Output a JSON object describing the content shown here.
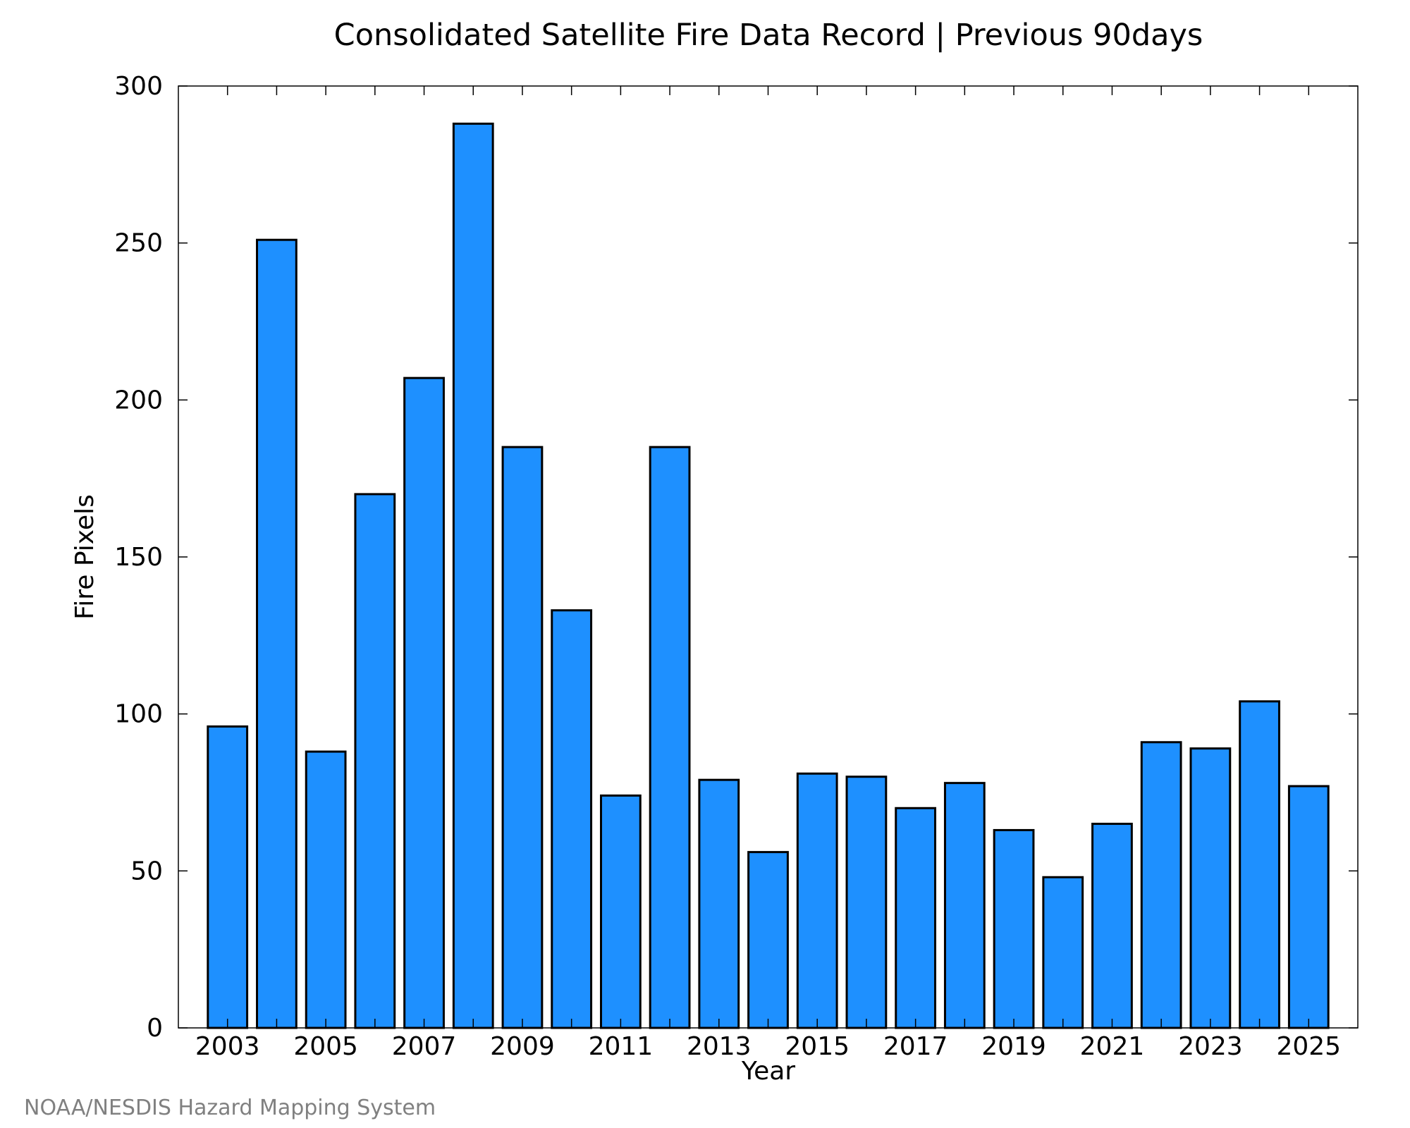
{
  "chart_data": {
    "type": "bar",
    "title": "Consolidated Satellite Fire Data Record | Previous 90days",
    "xlabel": "Year",
    "ylabel": "Fire Pixels",
    "x_tick_labels": [
      "2003",
      "2005",
      "2007",
      "2009",
      "2011",
      "2013",
      "2015",
      "2017",
      "2019",
      "2021",
      "2023",
      "2025"
    ],
    "y_tick_labels": [
      "0",
      "50",
      "100",
      "150",
      "200",
      "250",
      "300"
    ],
    "y_ticks": [
      0,
      50,
      100,
      150,
      200,
      250,
      300
    ],
    "ylim": [
      0,
      300
    ],
    "xlim": [
      2002,
      2026
    ],
    "categories": [
      2003,
      2004,
      2005,
      2006,
      2007,
      2008,
      2009,
      2010,
      2011,
      2012,
      2013,
      2014,
      2015,
      2016,
      2017,
      2018,
      2019,
      2020,
      2021,
      2022,
      2023,
      2024,
      2025
    ],
    "values": [
      96,
      251,
      88,
      170,
      207,
      288,
      185,
      133,
      74,
      185,
      79,
      56,
      81,
      80,
      70,
      78,
      63,
      48,
      65,
      91,
      89,
      104,
      77
    ],
    "bar_color": "#1E90FF",
    "edge_color": "#000000",
    "grid": false,
    "legend": false
  },
  "credit": "NOAA/NESDIS Hazard Mapping System"
}
